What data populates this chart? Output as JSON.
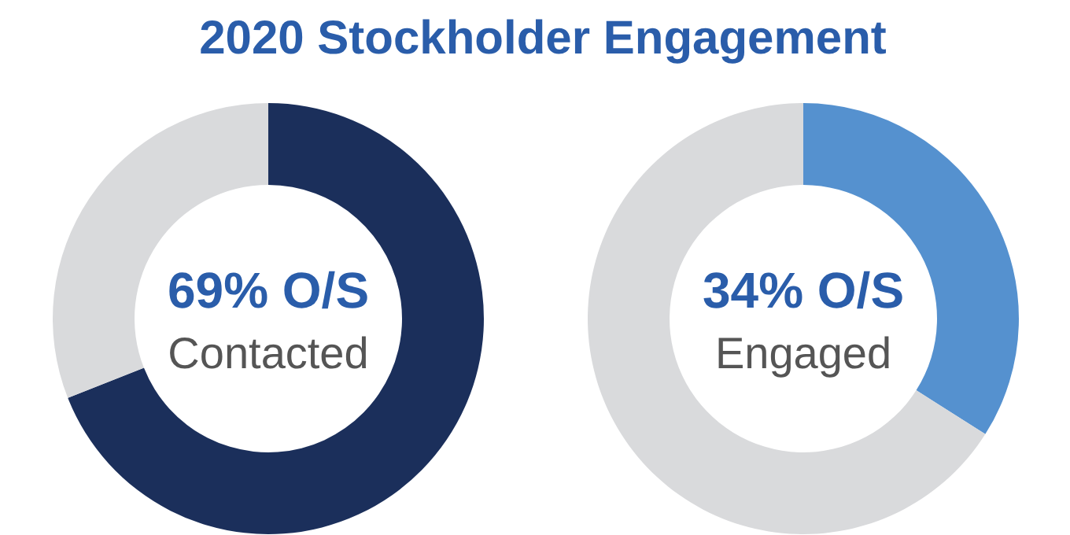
{
  "chart_data": [
    {
      "type": "donut",
      "title": "2020 Stockholder Engagement",
      "categories": [
        null,
        null
      ],
      "values": [
        69,
        31
      ],
      "colors": [
        "#1b2f5b",
        "#d9dadc"
      ],
      "annotations": [
        "69% O/S",
        "Contacted"
      ]
    },
    {
      "type": "donut",
      "categories": [
        null,
        null
      ],
      "values": [
        34,
        66
      ],
      "colors": [
        "#5591cf",
        "#d9dadc"
      ],
      "annotations": [
        "34% O/S",
        "Engaged"
      ]
    }
  ]
}
